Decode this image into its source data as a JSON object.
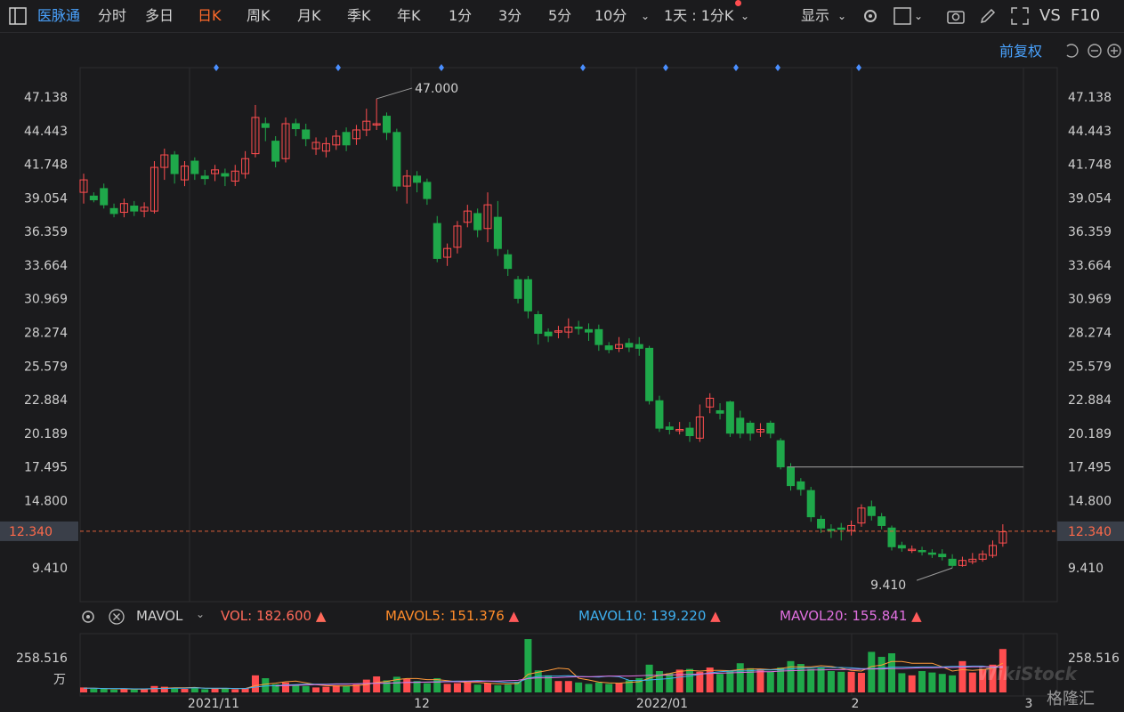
{
  "toolbar": {
    "brand": "医脉通",
    "periods": [
      "分时",
      "多日",
      "日K",
      "周K",
      "月K",
      "季K",
      "年K",
      "1分",
      "3分",
      "5分",
      "10分"
    ],
    "active_period": "日K",
    "interval": "1天 : 1分K",
    "display_label": "显示",
    "vs_label": "VS",
    "f10_label": "F10"
  },
  "price_panel": {
    "adjust_label": "前复权",
    "high_marker": "47.000",
    "low_marker": "9.410",
    "current_price": "12.340",
    "price_ticks": [
      "47.138",
      "44.443",
      "41.748",
      "39.054",
      "36.359",
      "33.664",
      "30.969",
      "28.274",
      "25.579",
      "22.884",
      "20.189",
      "17.495",
      "14.800",
      "12.340",
      "9.410"
    ]
  },
  "volume_panel": {
    "indicator": "MAVOL",
    "vol_label": "VOL:",
    "vol_value": "182.600",
    "mavol5_label": "MAVOL5:",
    "mavol5_value": "151.376",
    "mavol10_label": "MAVOL10:",
    "mavol10_value": "139.220",
    "mavol20_label": "MAVOL20:",
    "mavol20_value": "155.841",
    "max_tick": "258.516",
    "unit": "万"
  },
  "x_labels": [
    "2021/11",
    "12",
    "2022/01",
    "2",
    "3"
  ],
  "watermark": {
    "text1": "WikiStock",
    "text2": "格隆汇"
  },
  "colors": {
    "up": "#ff4d4f",
    "down": "#1fa84a",
    "accent": "#ff6a2a",
    "brand": "#4aa3ff"
  },
  "chart_data": {
    "type": "candlestick",
    "ylim": [
      9.41,
      47.138
    ],
    "candles": [
      [
        39.5,
        40.5,
        41.0,
        38.6
      ],
      [
        39.2,
        38.9,
        39.5,
        38.7
      ],
      [
        39.8,
        38.5,
        40.2,
        38.2
      ],
      [
        38.2,
        37.8,
        38.6,
        37.5
      ],
      [
        37.9,
        38.6,
        39.0,
        37.5
      ],
      [
        38.4,
        38.0,
        38.8,
        37.6
      ],
      [
        38.0,
        38.3,
        38.7,
        37.5
      ],
      [
        38.0,
        41.5,
        42.0,
        37.8
      ],
      [
        41.5,
        42.5,
        43.0,
        40.5
      ],
      [
        42.5,
        41.0,
        42.8,
        40.2
      ],
      [
        40.5,
        41.6,
        42.0,
        40.0
      ],
      [
        42.0,
        41.0,
        42.3,
        40.5
      ],
      [
        40.8,
        40.6,
        41.3,
        40.1
      ],
      [
        41.0,
        41.3,
        41.7,
        40.4
      ],
      [
        41.0,
        40.8,
        41.4,
        40.0
      ],
      [
        40.4,
        41.2,
        41.7,
        40.0
      ],
      [
        41.0,
        42.2,
        42.8,
        40.6
      ],
      [
        42.6,
        45.5,
        46.5,
        42.3
      ],
      [
        45.0,
        44.7,
        45.5,
        43.6
      ],
      [
        43.6,
        42.0,
        44.0,
        41.5
      ],
      [
        42.2,
        45.0,
        45.5,
        41.9
      ],
      [
        45.0,
        44.6,
        45.4,
        44.0
      ],
      [
        44.5,
        43.8,
        45.0,
        43.2
      ],
      [
        43.0,
        43.5,
        43.9,
        42.5
      ],
      [
        42.8,
        43.4,
        43.9,
        42.3
      ],
      [
        43.3,
        44.0,
        44.5,
        42.9
      ],
      [
        44.3,
        43.3,
        44.7,
        42.8
      ],
      [
        43.8,
        44.5,
        44.9,
        43.3
      ],
      [
        44.5,
        45.2,
        46.2,
        44.0
      ],
      [
        45.0,
        45.0,
        47.0,
        44.5
      ],
      [
        45.6,
        44.3,
        45.9,
        43.7
      ],
      [
        44.3,
        40.0,
        44.6,
        39.6
      ],
      [
        40.0,
        40.8,
        41.3,
        38.6
      ],
      [
        40.8,
        40.3,
        41.2,
        39.5
      ],
      [
        40.3,
        39.0,
        40.6,
        38.5
      ],
      [
        37.0,
        34.2,
        37.6,
        33.9
      ],
      [
        34.3,
        35.0,
        35.4,
        33.6
      ],
      [
        35.1,
        36.8,
        37.2,
        34.6
      ],
      [
        37.1,
        38.0,
        38.5,
        36.7
      ],
      [
        37.8,
        36.5,
        38.2,
        35.9
      ],
      [
        36.6,
        38.5,
        39.5,
        35.5
      ],
      [
        37.5,
        35.0,
        38.8,
        34.4
      ],
      [
        34.5,
        33.4,
        34.9,
        32.8
      ],
      [
        32.5,
        31.0,
        32.8,
        30.6
      ],
      [
        32.5,
        30.0,
        32.8,
        29.4
      ],
      [
        29.7,
        28.2,
        30.0,
        27.3
      ],
      [
        28.3,
        28.0,
        28.6,
        27.5
      ],
      [
        28.3,
        28.4,
        28.8,
        27.8
      ],
      [
        28.3,
        28.7,
        29.4,
        27.8
      ],
      [
        28.7,
        28.6,
        29.2,
        28.1
      ],
      [
        28.5,
        28.3,
        29.0,
        27.6
      ],
      [
        28.5,
        27.3,
        28.9,
        26.8
      ],
      [
        27.2,
        26.9,
        27.5,
        26.6
      ],
      [
        27.0,
        27.3,
        27.9,
        26.7
      ],
      [
        27.4,
        27.1,
        27.8,
        26.7
      ],
      [
        27.3,
        27.0,
        27.9,
        26.4
      ],
      [
        27.0,
        22.8,
        27.2,
        22.5
      ],
      [
        22.8,
        20.6,
        23.2,
        20.3
      ],
      [
        20.7,
        20.5,
        21.1,
        20.1
      ],
      [
        20.5,
        20.5,
        21.1,
        20.1
      ],
      [
        20.6,
        20.0,
        21.1,
        19.5
      ],
      [
        19.8,
        21.5,
        22.5,
        19.5
      ],
      [
        22.3,
        23.0,
        23.4,
        21.8
      ],
      [
        22.0,
        21.8,
        22.6,
        21.3
      ],
      [
        22.7,
        20.2,
        22.8,
        19.9
      ],
      [
        21.4,
        20.2,
        22.0,
        19.8
      ],
      [
        21.0,
        20.2,
        21.2,
        19.6
      ],
      [
        20.3,
        20.5,
        21.0,
        19.9
      ],
      [
        21.0,
        20.2,
        21.2,
        19.8
      ],
      [
        19.6,
        17.5,
        19.8,
        17.3
      ],
      [
        17.5,
        16.0,
        17.8,
        15.6
      ],
      [
        16.3,
        15.7,
        16.6,
        15.2
      ],
      [
        15.6,
        13.5,
        15.9,
        13.1
      ],
      [
        13.3,
        12.6,
        13.6,
        12.2
      ],
      [
        12.5,
        12.4,
        12.9,
        11.8
      ],
      [
        12.6,
        12.5,
        13.0,
        11.6
      ],
      [
        12.4,
        12.8,
        13.2,
        12.0
      ],
      [
        13.0,
        14.2,
        14.5,
        12.7
      ],
      [
        14.3,
        13.6,
        14.8,
        13.2
      ],
      [
        13.5,
        12.8,
        13.8,
        12.5
      ],
      [
        12.6,
        11.1,
        12.8,
        10.8
      ],
      [
        11.2,
        11.0,
        11.5,
        10.7
      ],
      [
        10.9,
        10.9,
        11.2,
        10.6
      ],
      [
        10.8,
        10.7,
        11.1,
        10.4
      ],
      [
        10.6,
        10.5,
        10.9,
        10.2
      ],
      [
        10.5,
        10.3,
        10.9,
        10.0
      ],
      [
        10.1,
        9.6,
        10.5,
        9.4
      ],
      [
        9.6,
        10.0,
        10.3,
        9.5
      ],
      [
        9.9,
        10.1,
        10.6,
        9.7
      ],
      [
        10.1,
        10.5,
        10.8,
        9.9
      ],
      [
        10.4,
        11.2,
        11.6,
        10.2
      ],
      [
        11.4,
        12.3,
        12.9,
        11.1
      ]
    ],
    "volumes": [
      14,
      10,
      10,
      8,
      9,
      8,
      9,
      18,
      16,
      11,
      10,
      12,
      9,
      10,
      12,
      9,
      12,
      48,
      40,
      23,
      28,
      20,
      18,
      14,
      16,
      20,
      18,
      22,
      36,
      45,
      34,
      44,
      38,
      32,
      26,
      40,
      24,
      26,
      28,
      22,
      26,
      20,
      22,
      30,
      150,
      62,
      48,
      32,
      32,
      28,
      24,
      28,
      24,
      26,
      34,
      40,
      78,
      60,
      54,
      64,
      66,
      58,
      70,
      52,
      60,
      82,
      68,
      66,
      58,
      70,
      88,
      80,
      66,
      70,
      60,
      58,
      58,
      55,
      114,
      100,
      110,
      54,
      48,
      60,
      56,
      52,
      48,
      88,
      56,
      66,
      78,
      122
    ],
    "mavol5": [
      12,
      12,
      11,
      10,
      10,
      9,
      9,
      11,
      12,
      13,
      13,
      14,
      12,
      11,
      11,
      11,
      11,
      19,
      23,
      26,
      30,
      32,
      27,
      22,
      19,
      18,
      18,
      19,
      22,
      28,
      31,
      36,
      39,
      39,
      36,
      36,
      33,
      30,
      28,
      28,
      26,
      24,
      24,
      25,
      51,
      57,
      62,
      68,
      66,
      40,
      35,
      29,
      27,
      26,
      28,
      30,
      40,
      48,
      53,
      59,
      62,
      60,
      62,
      62,
      61,
      64,
      66,
      66,
      64,
      67,
      72,
      72,
      72,
      75,
      73,
      68,
      62,
      60,
      73,
      77,
      87,
      87,
      82,
      82,
      82,
      72,
      60,
      64,
      62,
      64,
      68,
      82
    ],
    "mavol10": [
      12,
      12,
      11,
      11,
      11,
      10,
      10,
      11,
      11,
      12,
      12,
      13,
      12,
      12,
      12,
      11,
      11,
      15,
      18,
      19,
      21,
      22,
      23,
      23,
      23,
      24,
      24,
      24,
      25,
      26,
      26,
      27,
      28,
      29,
      29,
      30,
      31,
      32,
      32,
      33,
      32,
      30,
      28,
      28,
      40,
      45,
      46,
      46,
      47,
      45,
      44,
      43,
      46,
      44,
      34,
      33,
      35,
      37,
      39,
      43,
      46,
      51,
      55,
      58,
      60,
      60,
      61,
      63,
      63,
      64,
      66,
      68,
      69,
      70,
      70,
      70,
      69,
      67,
      67,
      68,
      71,
      71,
      71,
      72,
      72,
      72,
      73,
      73,
      74,
      74,
      70,
      72
    ],
    "mavol20": [
      null,
      null,
      null,
      null,
      null,
      null,
      null,
      null,
      null,
      null,
      null,
      null,
      null,
      null,
      null,
      null,
      null,
      null,
      null,
      18,
      19,
      20,
      21,
      22,
      22,
      23,
      23,
      24,
      25,
      26,
      26,
      27,
      28,
      28,
      29,
      29,
      30,
      30,
      31,
      31,
      32,
      32,
      33,
      34,
      39,
      41,
      41,
      42,
      43,
      44,
      44,
      45,
      46,
      46,
      46,
      47,
      48,
      48,
      49,
      50,
      51,
      52,
      53,
      54,
      55,
      56,
      57,
      58,
      58,
      60,
      61,
      62,
      63,
      63,
      64,
      64,
      65,
      65,
      66,
      66,
      67,
      67,
      68,
      69,
      69,
      70,
      70,
      71,
      72,
      72,
      72,
      72
    ]
  }
}
